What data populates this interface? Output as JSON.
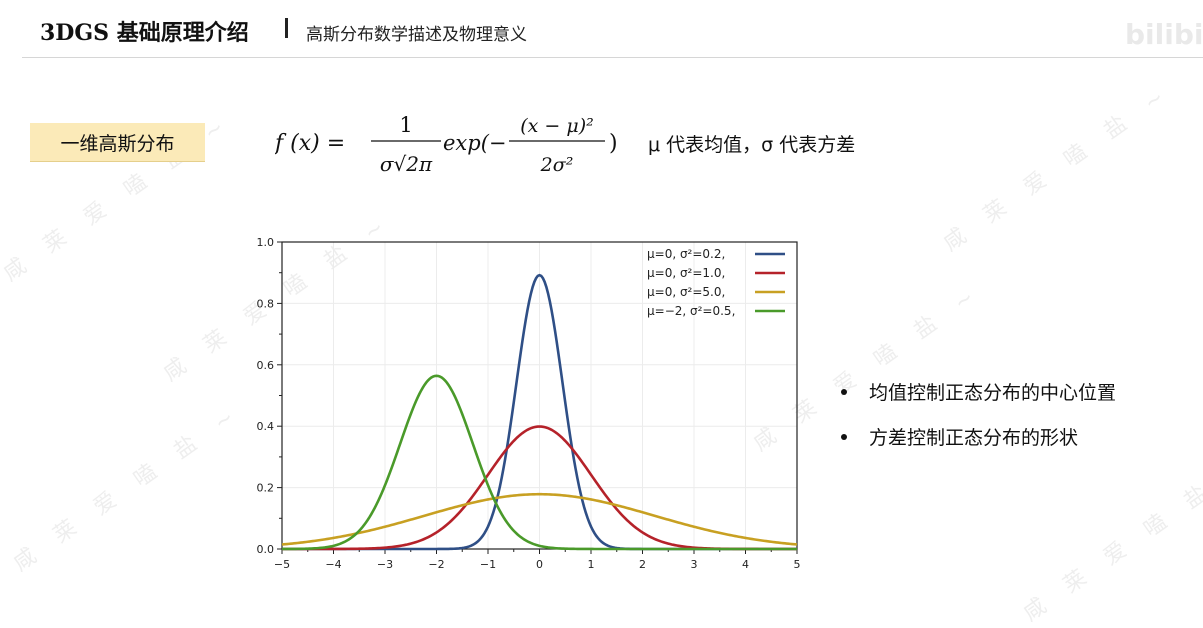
{
  "header": {
    "title": "3DGS 基础原理介绍",
    "subtitle": "高斯分布数学描述及物理意义",
    "brand": "bilibili"
  },
  "section": {
    "tag": "一维高斯分布",
    "description": "μ 代表均值，σ 代表方差"
  },
  "formula": {
    "lhs": "f (x) =",
    "numerator": "1",
    "denominator": "σ√2π",
    "exp_text": "exp(−",
    "inner_numerator": "(x − μ)²",
    "inner_denominator": "2σ²",
    "close": ")"
  },
  "bullets": [
    "均值控制正态分布的中心位置",
    "方差控制正态分布的形状"
  ],
  "watermark_text": "咸 莱 爱 嗑 盐 ~",
  "colors": {
    "tag_bg": "#fbeab8",
    "blue": "#2f4f86",
    "red": "#b5222a",
    "gold": "#c8a022",
    "green": "#4a9a2a"
  },
  "chart_data": {
    "type": "line",
    "title": "",
    "xlabel": "",
    "ylabel": "",
    "xlim": [
      -5,
      5
    ],
    "ylim": [
      0,
      1.0
    ],
    "xticks": [
      "−5",
      "−4",
      "−3",
      "−2",
      "−1",
      "0",
      "1",
      "2",
      "3",
      "4",
      "5"
    ],
    "yticks": [
      "0.0",
      "0.2",
      "0.4",
      "0.6",
      "0.8",
      "1.0"
    ],
    "grid": true,
    "legend_position": "top-right",
    "series": [
      {
        "name": "μ=0,   σ²=0.2,",
        "mu": 0,
        "var": 0.2,
        "color": "#2f4f86"
      },
      {
        "name": "μ=0,   σ²=1.0,",
        "mu": 0,
        "var": 1.0,
        "color": "#b5222a"
      },
      {
        "name": "μ=0,   σ²=5.0,",
        "mu": 0,
        "var": 5.0,
        "color": "#c8a022"
      },
      {
        "name": "μ=−2, σ²=0.5,",
        "mu": -2,
        "var": 0.5,
        "color": "#4a9a2a"
      }
    ]
  }
}
